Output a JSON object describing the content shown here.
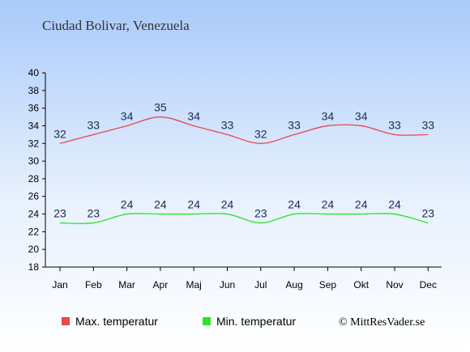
{
  "chart_data": {
    "type": "line",
    "title": "Ciudad Bolivar, Venezuela",
    "categories": [
      "Jan",
      "Feb",
      "Mar",
      "Apr",
      "Maj",
      "Jun",
      "Jul",
      "Aug",
      "Sep",
      "Okt",
      "Nov",
      "Dec"
    ],
    "ylim": [
      18,
      40
    ],
    "yticks": [
      18,
      20,
      22,
      24,
      26,
      28,
      30,
      32,
      34,
      36,
      38,
      40
    ],
    "grid": false,
    "legend_position": "bottom-left",
    "series": [
      {
        "name": "Max. temperatur",
        "color": "#e8474f",
        "values": [
          32,
          33,
          34,
          35,
          34,
          33,
          32,
          33,
          34,
          34,
          33,
          33
        ]
      },
      {
        "name": "Min. temperatur",
        "color": "#2ee22e",
        "values": [
          23,
          23,
          24,
          24,
          24,
          24,
          23,
          24,
          24,
          24,
          24,
          23
        ]
      }
    ],
    "credit": "© MittResVader.se",
    "colors": {
      "background_top": "#a9cafa",
      "background_bottom": "#ffffff",
      "label": "#1a2a55"
    }
  }
}
